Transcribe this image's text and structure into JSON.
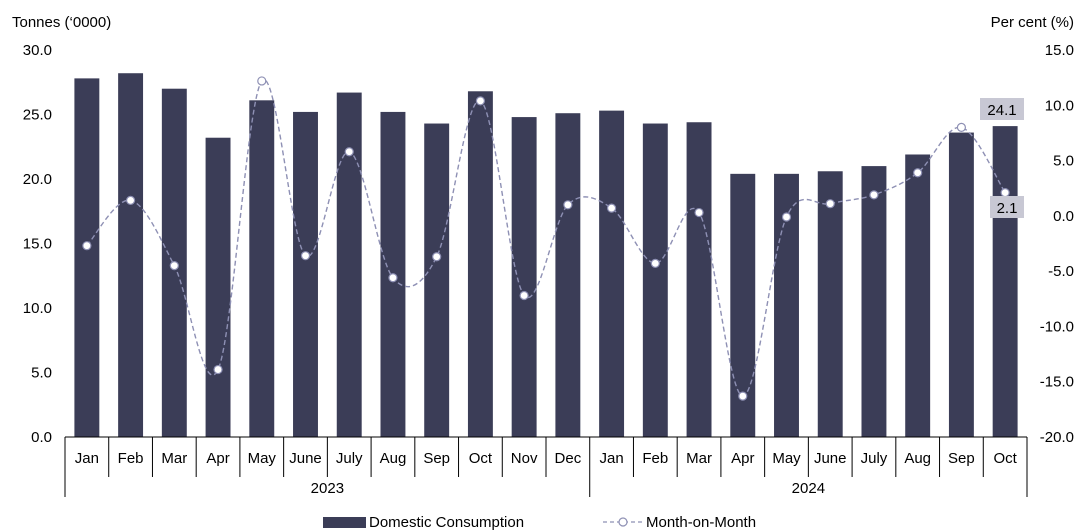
{
  "chart_data": {
    "type": "bar",
    "categories": [
      "Jan",
      "Feb",
      "Mar",
      "Apr",
      "May",
      "June",
      "July",
      "Aug",
      "Sep",
      "Oct",
      "Nov",
      "Dec",
      "Jan",
      "Feb",
      "Mar",
      "Apr",
      "May",
      "June",
      "July",
      "Aug",
      "Sep",
      "Oct"
    ],
    "year_groups": [
      {
        "label": "2023",
        "start": 0,
        "end": 11
      },
      {
        "label": "2024",
        "start": 12,
        "end": 21
      }
    ],
    "series": [
      {
        "name": "Domestic Consumption",
        "type": "bar",
        "axis": "left",
        "values": [
          27.8,
          28.2,
          27.0,
          23.2,
          26.1,
          25.2,
          26.7,
          25.2,
          24.3,
          26.8,
          24.8,
          25.1,
          25.3,
          24.3,
          24.4,
          20.4,
          20.4,
          20.6,
          21.0,
          21.9,
          23.6,
          24.1
        ]
      },
      {
        "name": "Month-on-Month",
        "type": "line",
        "axis": "right",
        "values": [
          -2.7,
          1.4,
          -4.5,
          -13.9,
          12.2,
          -3.6,
          5.8,
          -5.6,
          -3.7,
          10.4,
          -7.2,
          1.0,
          0.7,
          -4.3,
          0.3,
          -16.3,
          -0.1,
          1.1,
          1.9,
          3.9,
          8.0,
          2.1
        ]
      }
    ],
    "y_left": {
      "label": "Tonnes (‘0000)",
      "ylim": [
        0,
        30
      ],
      "ticks": [
        "0.0",
        "5.0",
        "10.0",
        "15.0",
        "20.0",
        "25.0",
        "30.0"
      ]
    },
    "y_right": {
      "label": "Per cent (%)",
      "ylim": [
        -20,
        15
      ],
      "ticks": [
        "-20.0",
        "-15.0",
        "-10.0",
        "-5.0",
        "0.0",
        "5.0",
        "10.0",
        "15.0"
      ]
    },
    "callouts": {
      "bar_last": "24.1",
      "line_last": "2.1"
    },
    "colors": {
      "bar": "#3b3d57",
      "line": "#8e90b4",
      "callout_bg": "#c8c8d4"
    },
    "legend_position": "bottom-center",
    "grid": false
  }
}
